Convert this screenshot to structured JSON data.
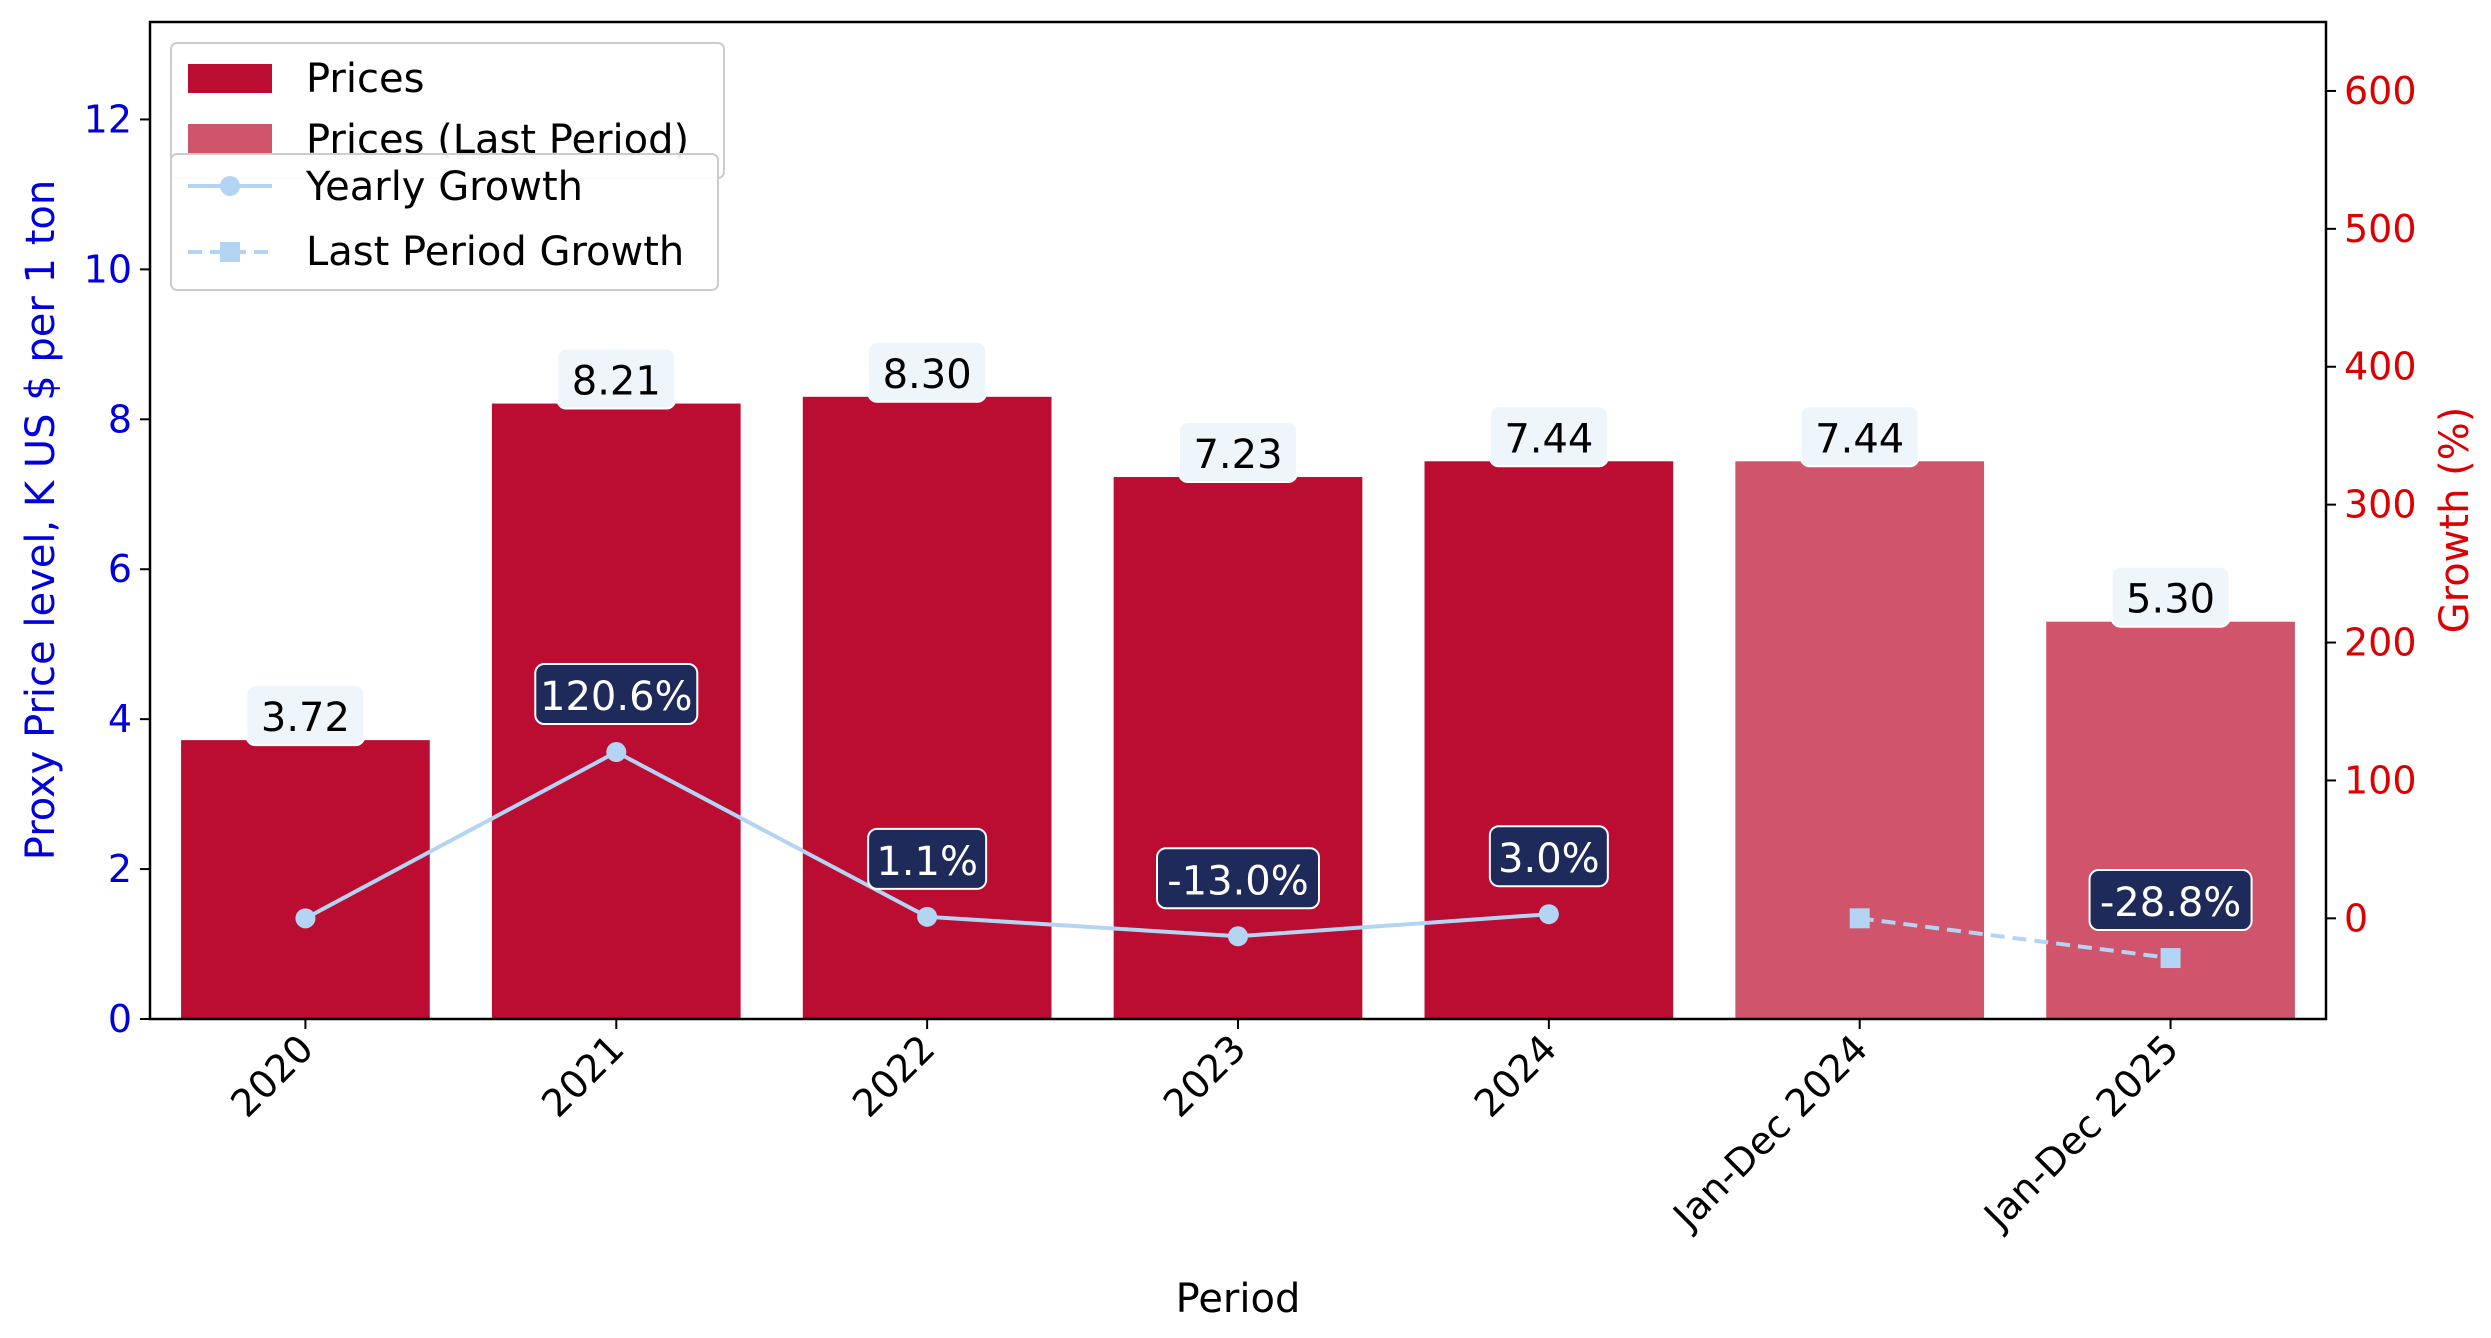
{
  "chart_data": {
    "type": "bar",
    "categories": [
      "2020",
      "2021",
      "2022",
      "2023",
      "2024",
      "Jan-Dec 2024",
      "Jan-Dec 2025"
    ],
    "series": [
      {
        "name": "Prices",
        "axis": "left",
        "type": "bar",
        "values": [
          3.72,
          8.21,
          8.3,
          7.23,
          7.44,
          null,
          null
        ],
        "labels": [
          "3.72",
          "8.21",
          "8.30",
          "7.23",
          "7.44",
          null,
          null
        ],
        "color": "#bb0c32"
      },
      {
        "name": "Prices (Last Period)",
        "axis": "left",
        "type": "bar",
        "values": [
          null,
          null,
          null,
          null,
          null,
          7.44,
          5.3
        ],
        "labels": [
          null,
          null,
          null,
          null,
          null,
          "7.44",
          "5.30"
        ],
        "color": "#d0546b"
      },
      {
        "name": "Yearly Growth",
        "axis": "right",
        "type": "line",
        "style": "solid",
        "marker": "circle",
        "values": [
          0,
          120.6,
          1.1,
          -13.0,
          3.0,
          null,
          null
        ],
        "labels": [
          null,
          "120.6%",
          "1.1%",
          "-13.0%",
          "3.0%",
          null,
          null
        ],
        "color": "#b3d5f3"
      },
      {
        "name": "Last Period Growth",
        "axis": "right",
        "type": "line",
        "style": "dashed",
        "marker": "square",
        "values": [
          null,
          null,
          null,
          null,
          null,
          0,
          -28.8
        ],
        "labels": [
          null,
          null,
          null,
          null,
          null,
          null,
          "-28.8%"
        ],
        "color": "#b3d5f3"
      }
    ],
    "xlabel": "Period",
    "ylabel": "Proxy Price level, K US $ per 1 ton",
    "y2label": "Growth (%)",
    "ylim": [
      0,
      13.3
    ],
    "y2lim": [
      -73,
      650
    ],
    "yticks": [
      "0",
      "2",
      "4",
      "6",
      "8",
      "10",
      "12"
    ],
    "y2ticks": [
      "0",
      "100",
      "200",
      "300",
      "400",
      "500",
      "600"
    ],
    "grid": false,
    "legend_placement": "top-left",
    "colors": {
      "left_axis": "#0000dd",
      "right_axis": "#dd0000",
      "price_label_bg": "#eef5fb",
      "growth_label_bg": "#1e2b5a"
    }
  }
}
